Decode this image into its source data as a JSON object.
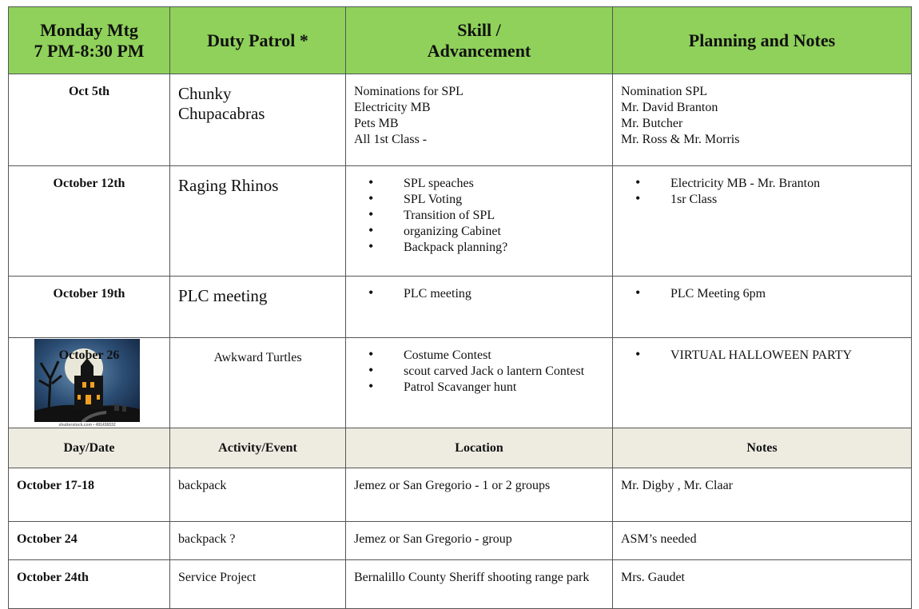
{
  "meetings": {
    "header": [
      "Monday Mtg\n7 PM-8:30 PM",
      "Duty Patrol *",
      "Skill /\nAdvancement",
      "Planning and Notes"
    ],
    "rows": [
      {
        "date": "Oct 5th",
        "patrol": "Chunky\nChupacabras",
        "skill": "Nominations for SPL\nElectricity MB\nPets MB\nAll 1st Class -",
        "notes": "Nomination SPL\nMr. David Branton\nMr. Butcher\nMr. Ross & Mr. Morris"
      },
      {
        "date": "October 12th",
        "patrol": "Raging Rhinos",
        "skill": [
          "SPL speaches",
          "SPL Voting",
          "Transition of SPL",
          "organizing Cabinet",
          "Backpack planning?"
        ],
        "notes": [
          "Electricity MB - Mr. Branton",
          "1sr Class"
        ]
      },
      {
        "date": "October 19th",
        "patrol": "PLC meeting",
        "skill": [
          "PLC meeting"
        ],
        "notes": [
          "PLC Meeting 6pm"
        ]
      },
      {
        "date": "October 26",
        "image_credit": "shutterstock.com • 491436532",
        "patrol": "Awkward Turtles",
        "skill": [
          "Costume Contest",
          "scout carved Jack o lantern Contest",
          "Patrol Scavanger hunt"
        ],
        "notes": [
          "VIRTUAL HALLOWEEN PARTY"
        ]
      }
    ]
  },
  "activities": {
    "header": [
      "Day/Date",
      "Activity/Event",
      "Location",
      "Notes"
    ],
    "rows": [
      [
        "October 17-18",
        "backpack",
        "Jemez or San Gregorio - 1 or 2 groups",
        "Mr. Digby , Mr. Claar"
      ],
      [
        "October 24",
        "backpack ?",
        "Jemez or San Gregorio - group",
        "ASM’s needed"
      ],
      [
        "October 24th",
        "Service Project",
        "Bernalillo County Sheriff shooting range park",
        "Mrs. Gaudet"
      ]
    ]
  }
}
